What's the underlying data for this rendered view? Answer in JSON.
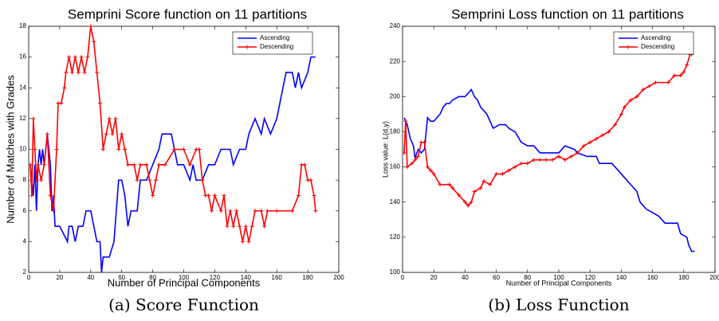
{
  "chart_data": [
    {
      "type": "line",
      "title": "Semprini Score function on 11 partitions",
      "caption": "(a) Score Function",
      "xlabel": "Number of Principal Components",
      "ylabel": "Number of Matches with Grades",
      "xlim": [
        0,
        200
      ],
      "xticks": [
        0,
        20,
        40,
        60,
        80,
        100,
        120,
        140,
        160,
        180,
        200
      ],
      "ylim": [
        2,
        18
      ],
      "yticks": [
        2,
        4,
        6,
        8,
        10,
        12,
        14,
        16,
        18
      ],
      "series": [
        {
          "name": "Ascending",
          "color": "#0000ff",
          "marker": "none",
          "x": [
            1,
            2,
            3,
            4,
            5,
            6,
            7,
            8,
            9,
            10,
            11,
            12,
            13,
            14,
            15,
            16,
            17,
            20,
            25,
            26,
            28,
            30,
            32,
            35,
            37,
            40,
            42,
            44,
            46,
            47,
            48,
            52,
            55,
            58,
            60,
            62,
            64,
            66,
            70,
            72,
            76,
            80,
            84,
            86,
            92,
            94,
            96,
            100,
            104,
            106,
            108,
            112,
            116,
            120,
            124,
            130,
            132,
            136,
            140,
            142,
            146,
            150,
            152,
            156,
            160,
            162,
            164,
            166,
            170,
            172,
            174,
            176,
            180,
            182,
            185
          ],
          "values": [
            9,
            8,
            7,
            9,
            6,
            9,
            10,
            9,
            10,
            9,
            10,
            11,
            10,
            9,
            6,
            7,
            5,
            5,
            4,
            5,
            5,
            4,
            5,
            5,
            6,
            6,
            5,
            4,
            4,
            2,
            3,
            3,
            4,
            8,
            8,
            7,
            5,
            6,
            6,
            8,
            8,
            9,
            10,
            11,
            11,
            10,
            9,
            9,
            8,
            9,
            8,
            8,
            9,
            9,
            10,
            10,
            9,
            10,
            10,
            11,
            12,
            11,
            12,
            11,
            12,
            13,
            14,
            15,
            15,
            14,
            15,
            14,
            15,
            16,
            16
          ]
        },
        {
          "name": "Descending",
          "color": "#ff0000",
          "marker": "plus",
          "x": [
            1,
            2,
            3,
            4,
            5,
            6,
            8,
            10,
            12,
            14,
            16,
            18,
            19,
            21,
            23,
            24,
            26,
            28,
            30,
            32,
            34,
            36,
            38,
            40,
            42,
            44,
            46,
            48,
            50,
            52,
            54,
            56,
            58,
            60,
            62,
            64,
            68,
            70,
            72,
            76,
            78,
            80,
            82,
            84,
            88,
            94,
            100,
            104,
            108,
            110,
            112,
            114,
            116,
            118,
            120,
            124,
            126,
            128,
            130,
            132,
            134,
            136,
            138,
            140,
            142,
            144,
            146,
            150,
            152,
            154,
            160,
            170,
            174,
            176,
            178,
            180,
            182,
            184,
            185
          ],
          "values": [
            9,
            7,
            12,
            10,
            8,
            9,
            8,
            9,
            11,
            7,
            6,
            10,
            13,
            13,
            14,
            15,
            16,
            15,
            16,
            15,
            16,
            15,
            16,
            18,
            17,
            15,
            13,
            10,
            11,
            12,
            11,
            12,
            10,
            11,
            10,
            9,
            9,
            8,
            9,
            9,
            8,
            7,
            8,
            9,
            9,
            10,
            10,
            9,
            10,
            10,
            8,
            7,
            7,
            6,
            7,
            6,
            7,
            5,
            6,
            5,
            6,
            5,
            4,
            5,
            4,
            5,
            6,
            6,
            5,
            6,
            6,
            6,
            7,
            9,
            9,
            8,
            8,
            7,
            6
          ]
        }
      ]
    },
    {
      "type": "line",
      "title": "Semprini Loss function on 11 partitions",
      "caption": "(b) Loss Function",
      "xlabel": "Number of Principal Components",
      "ylabel": "Loss value: L(d,y)",
      "xlim": [
        0,
        200
      ],
      "xticks": [
        0,
        20,
        40,
        60,
        80,
        100,
        120,
        140,
        160,
        180,
        200
      ],
      "ylim": [
        100,
        240
      ],
      "yticks": [
        100,
        120,
        140,
        160,
        180,
        200,
        220,
        240
      ],
      "series": [
        {
          "name": "Ascending",
          "color": "#0000ff",
          "marker": "none",
          "x": [
            1,
            3,
            5,
            7,
            8,
            10,
            12,
            14,
            16,
            18,
            20,
            22,
            24,
            26,
            28,
            30,
            32,
            36,
            40,
            42,
            44,
            46,
            48,
            50,
            54,
            56,
            58,
            62,
            66,
            68,
            72,
            76,
            80,
            84,
            88,
            100,
            104,
            110,
            112,
            118,
            124,
            126,
            134,
            136,
            142,
            146,
            150,
            152,
            156,
            160,
            164,
            168,
            176,
            178,
            182,
            183,
            185,
            187
          ],
          "values": [
            188,
            184,
            176,
            172,
            165,
            170,
            168,
            170,
            188,
            186,
            186,
            188,
            190,
            194,
            196,
            196,
            198,
            200,
            200,
            202,
            204,
            200,
            198,
            194,
            190,
            186,
            182,
            184,
            184,
            182,
            180,
            174,
            172,
            172,
            168,
            168,
            172,
            170,
            168,
            166,
            166,
            162,
            162,
            160,
            154,
            150,
            146,
            140,
            136,
            134,
            132,
            128,
            128,
            122,
            120,
            116,
            112,
            112
          ]
        },
        {
          "name": "Descending",
          "color": "#ff0000",
          "marker": "plus",
          "x": [
            1,
            2,
            3,
            6,
            8,
            10,
            12,
            14,
            16,
            18,
            20,
            24,
            30,
            32,
            36,
            40,
            42,
            44,
            46,
            50,
            52,
            56,
            60,
            64,
            68,
            72,
            76,
            80,
            84,
            88,
            92,
            96,
            100,
            104,
            108,
            112,
            116,
            120,
            124,
            128,
            132,
            136,
            140,
            142,
            146,
            150,
            154,
            158,
            162,
            170,
            174,
            178,
            180,
            182,
            184,
            185
          ],
          "values": [
            168,
            186,
            160,
            162,
            164,
            166,
            174,
            174,
            160,
            158,
            156,
            150,
            150,
            148,
            144,
            140,
            138,
            140,
            146,
            148,
            152,
            150,
            156,
            156,
            158,
            160,
            162,
            162,
            164,
            164,
            164,
            164,
            166,
            164,
            166,
            168,
            172,
            174,
            176,
            178,
            180,
            184,
            190,
            194,
            198,
            200,
            204,
            206,
            208,
            208,
            212,
            212,
            214,
            218,
            224,
            224
          ]
        }
      ]
    }
  ]
}
